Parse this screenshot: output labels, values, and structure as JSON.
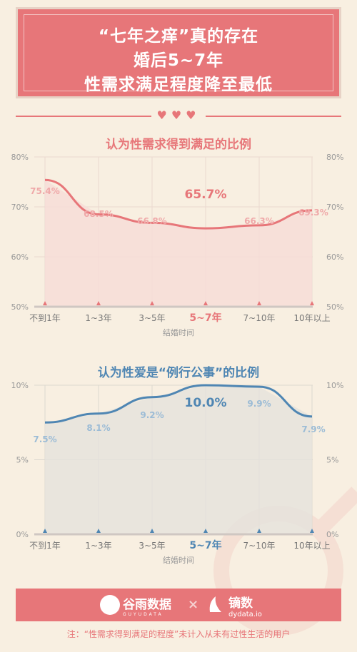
{
  "header": {
    "line1": "“七年之痒”真的存在",
    "line2": "婚后5~7年",
    "line3": "性需求满足程度降至最低"
  },
  "colors": {
    "pink": "#e77679",
    "blue": "#4f86b3",
    "background": "#f8efe1"
  },
  "chart_data": [
    {
      "type": "area",
      "title": "认为性需求得到满足的比例",
      "xlabel": "结婚时间",
      "ylabel": "",
      "categories": [
        "不到1年",
        "1~3年",
        "3~5年",
        "5~7年",
        "7~10年",
        "10年以上"
      ],
      "values": [
        75.4,
        68.5,
        66.8,
        65.7,
        66.3,
        69.3
      ],
      "value_labels": [
        "75.4%",
        "68.5%",
        "66.8%",
        "65.7%",
        "66.3%",
        "69.3%"
      ],
      "highlight_index": 3,
      "yticks": [
        "50%",
        "60%",
        "70%",
        "80%"
      ],
      "ylim": [
        50,
        80
      ],
      "color": "#e77679"
    },
    {
      "type": "area",
      "title": "认为性爱是“例行公事”的比例",
      "xlabel": "结婚时间",
      "ylabel": "",
      "categories": [
        "不到1年",
        "1~3年",
        "3~5年",
        "5~7年",
        "7~10年",
        "10年以上"
      ],
      "values": [
        7.5,
        8.1,
        9.2,
        10.0,
        9.9,
        7.9
      ],
      "value_labels": [
        "7.5%",
        "8.1%",
        "9.2%",
        "10.0%",
        "9.9%",
        "7.9%"
      ],
      "highlight_index": 3,
      "yticks": [
        "0%",
        "5%",
        "10%"
      ],
      "ylim": [
        0,
        10
      ],
      "color": "#4f86b3"
    }
  ],
  "footer": {
    "logo1_name": "谷雨数据",
    "logo1_sub": "GUYUDATA",
    "separator": "×",
    "logo2_name": "镝数",
    "logo2_sub": "dydata.io"
  },
  "note": "注：“性需求得到满足的程度”未计入从未有过性生活的用户"
}
